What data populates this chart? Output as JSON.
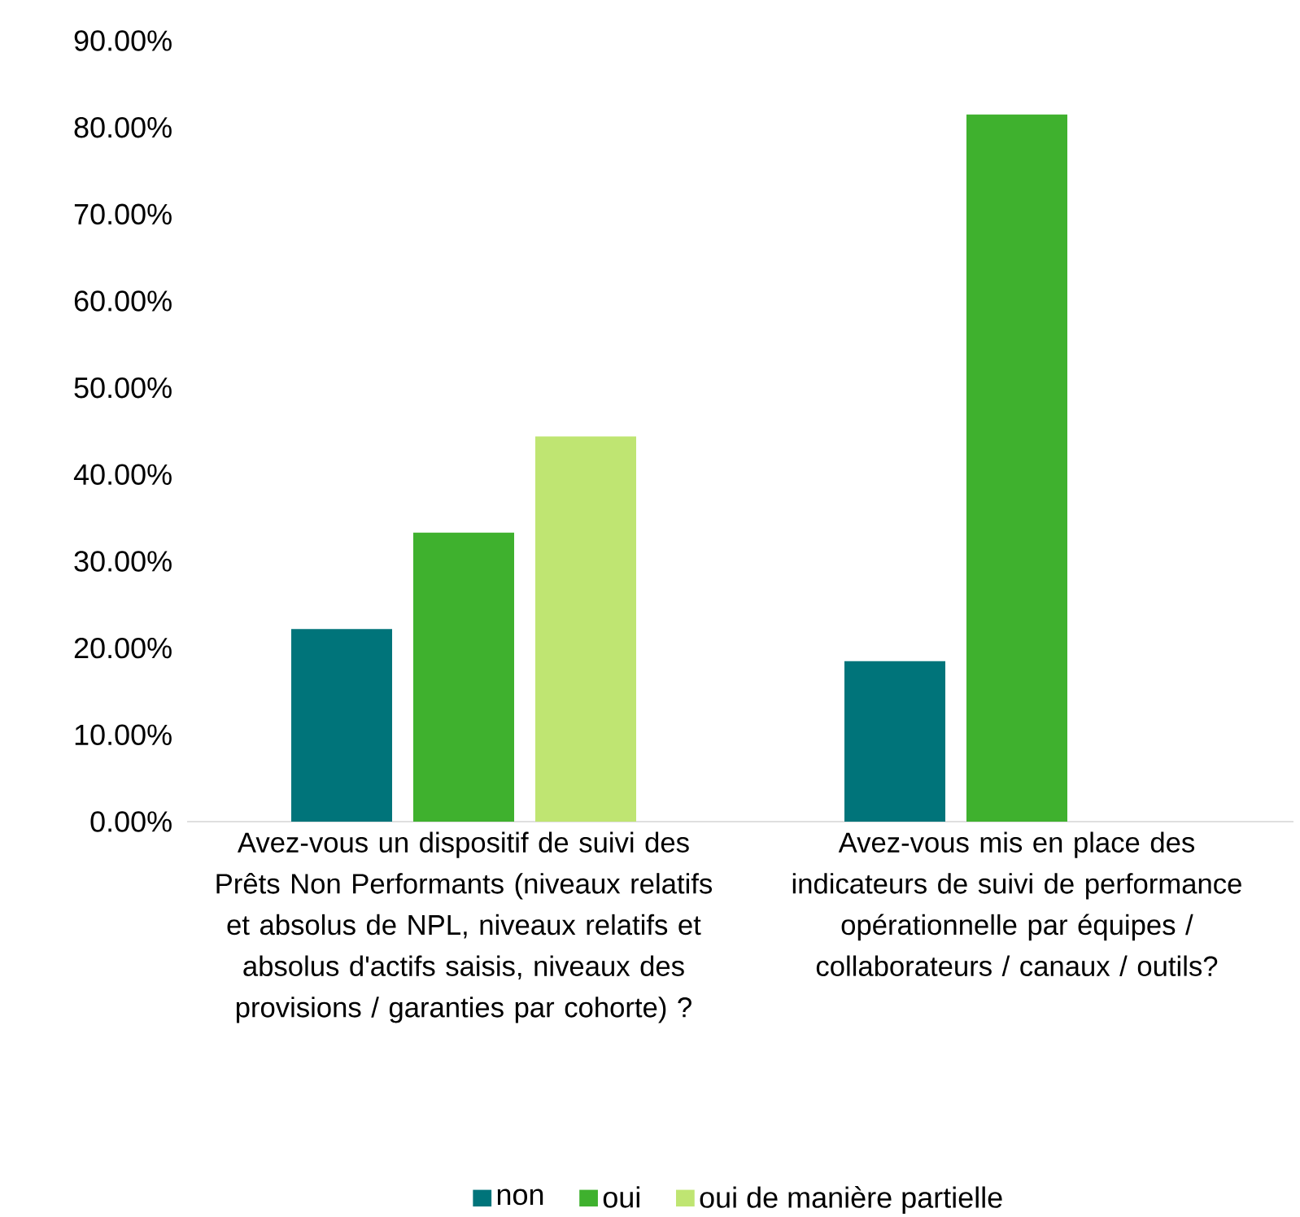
{
  "chart_data": {
    "type": "bar",
    "categories": [
      "Avez-vous un dispositif de suivi des Prêts Non Performants (niveaux relatifs et absolus de NPL, niveaux relatifs et absolus d'actifs saisis, niveaux des provisions / garanties par cohorte) ?",
      "Avez-vous mis en place des indicateurs de suivi de performance opérationnelle par équipes / collaborateurs / canaux / outils?"
    ],
    "series": [
      {
        "name": "non",
        "color": "#00747a",
        "values": [
          22.2,
          18.5
        ]
      },
      {
        "name": "oui",
        "color": "#3fb12e",
        "values": [
          33.3,
          81.5
        ]
      },
      {
        "name": "oui de manière partielle",
        "color": "#bfe572",
        "values": [
          44.4,
          null
        ]
      }
    ],
    "ylim": [
      0,
      90
    ],
    "yticks": [
      {
        "value": 0,
        "label": "0.00%"
      },
      {
        "value": 10,
        "label": "10.00%"
      },
      {
        "value": 20,
        "label": "20.00%"
      },
      {
        "value": 30,
        "label": "30.00%"
      },
      {
        "value": 40,
        "label": "40.00%"
      },
      {
        "value": 50,
        "label": "50.00%"
      },
      {
        "value": 60,
        "label": "60.00%"
      },
      {
        "value": 70,
        "label": "70.00%"
      },
      {
        "value": 80,
        "label": "80.00%"
      },
      {
        "value": 90,
        "label": "90.00%"
      }
    ],
    "grid": false,
    "legend": "bottom"
  }
}
